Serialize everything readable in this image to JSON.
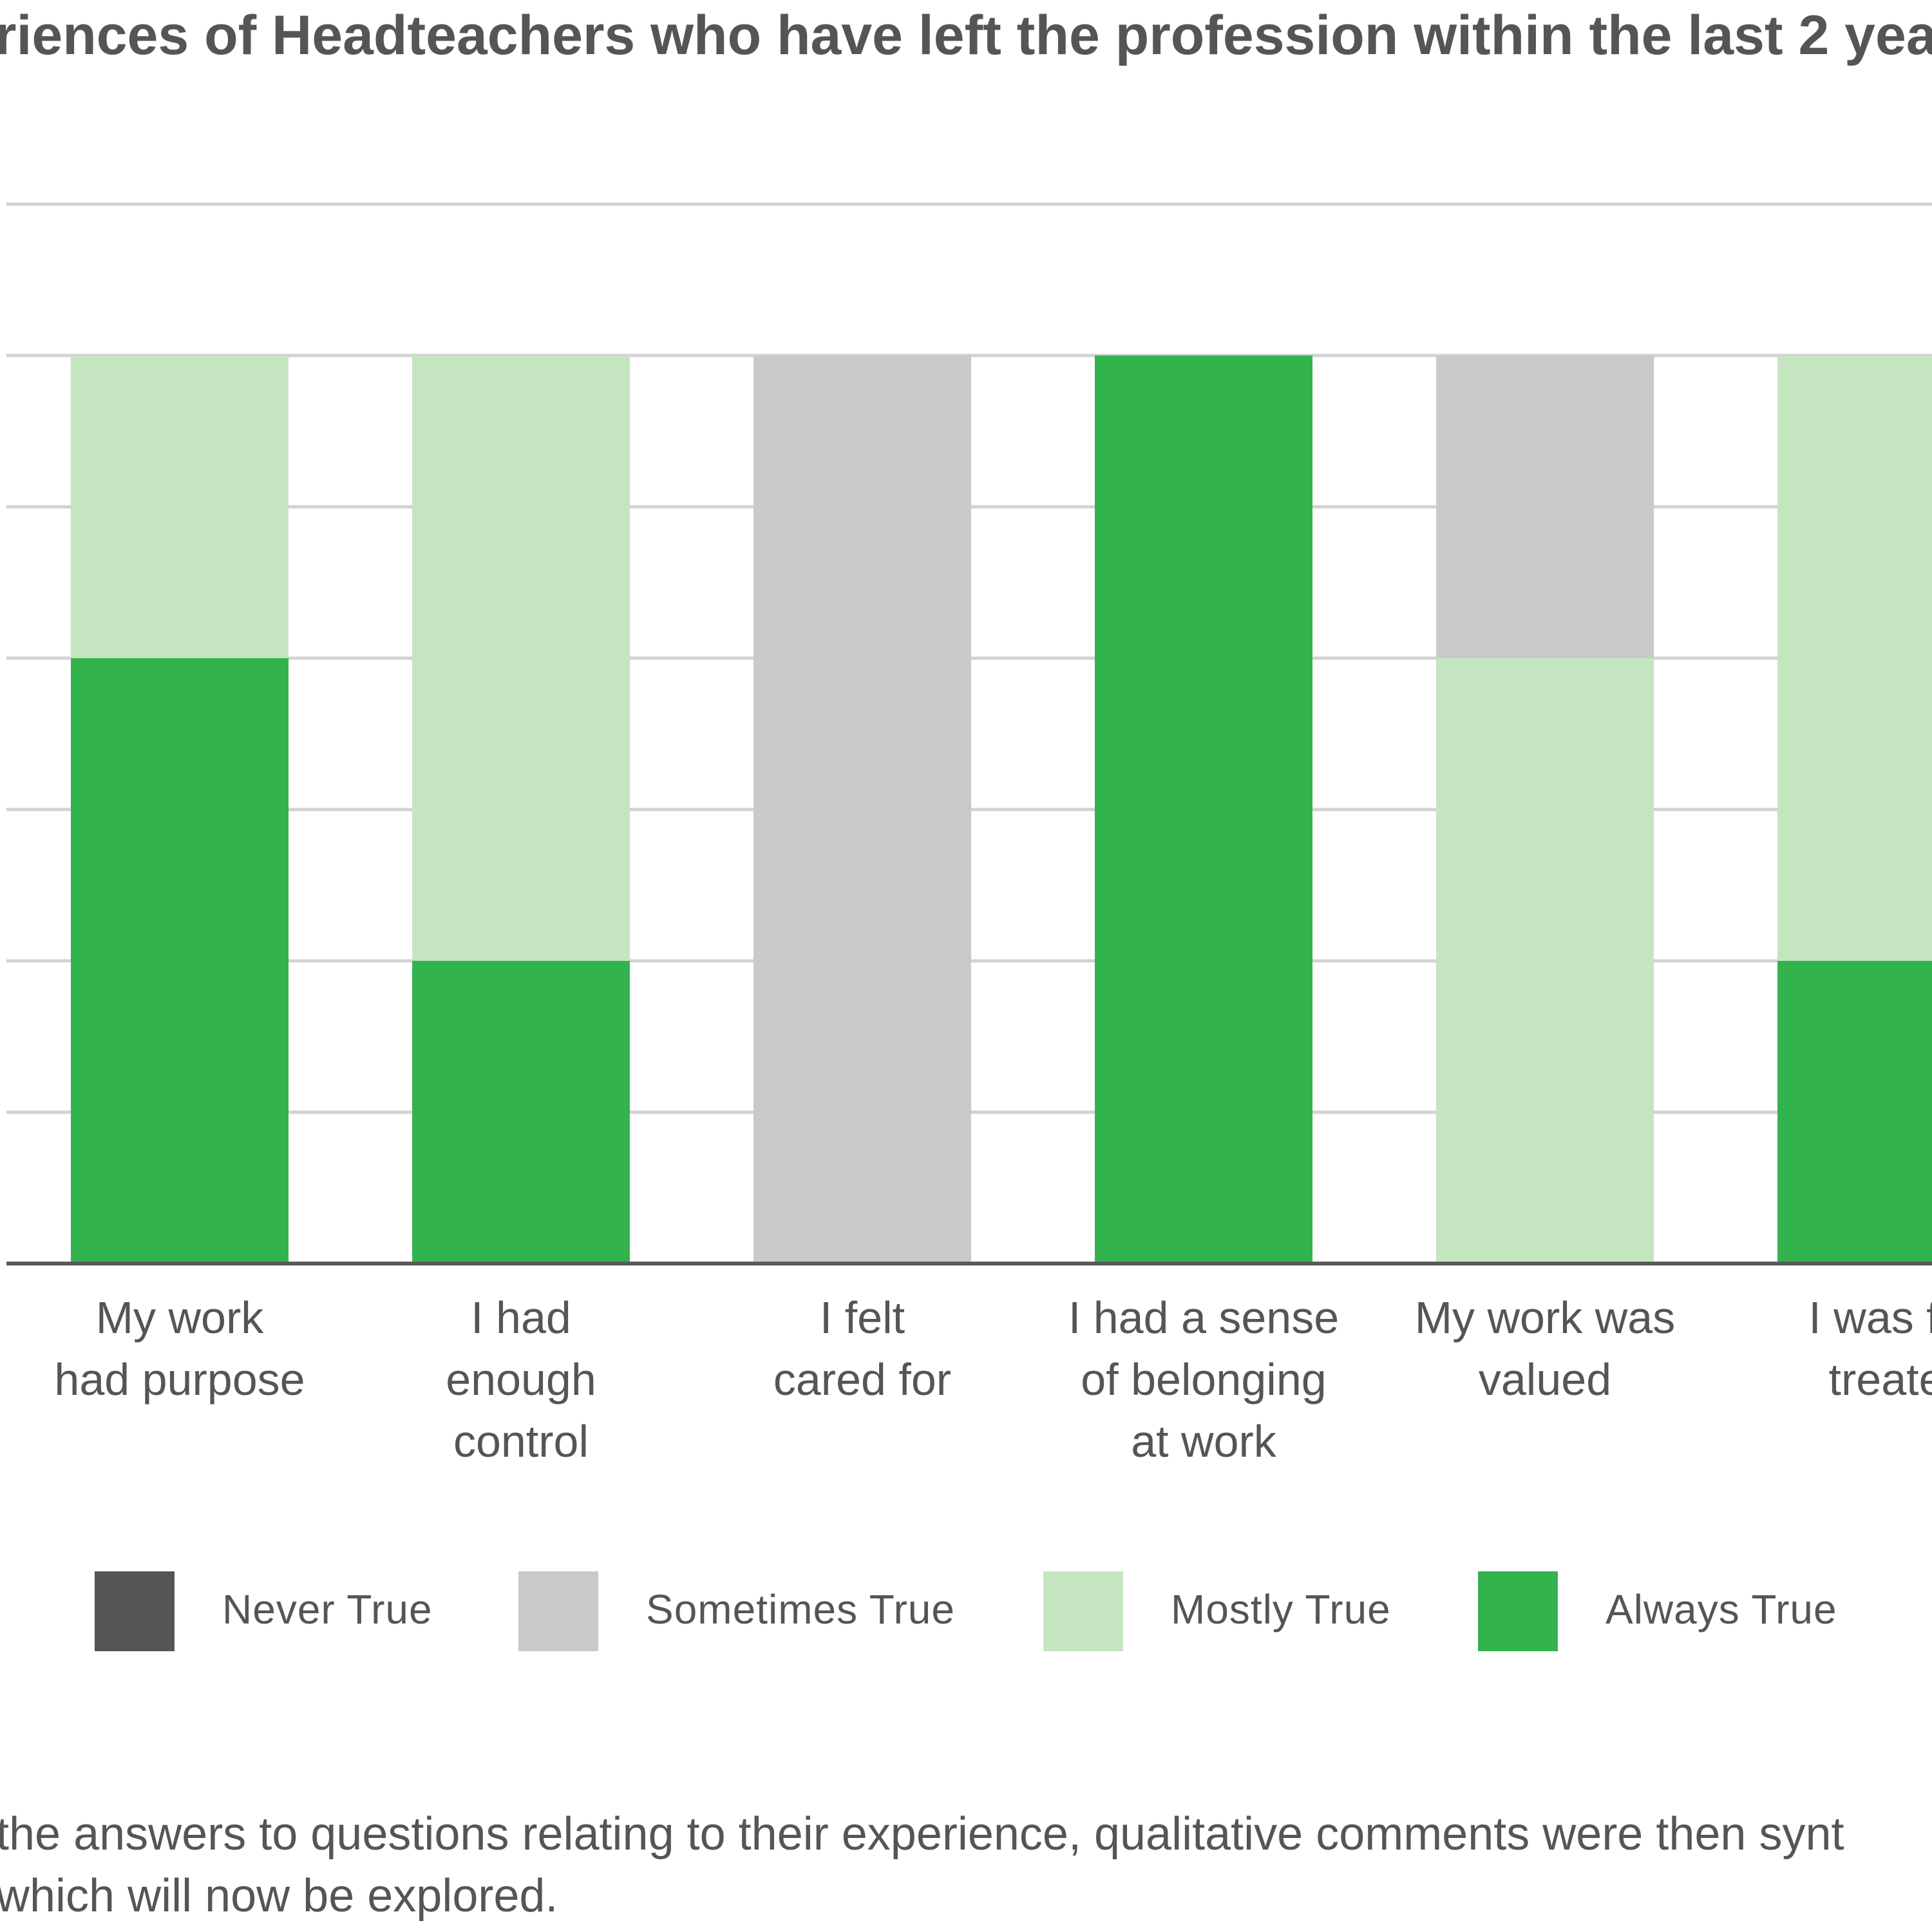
{
  "chart_data": {
    "type": "bar",
    "stacked": true,
    "title": "riences of Headteachers who have left the profession within the last 2 yea",
    "categories": [
      [
        "My work",
        "had purpose"
      ],
      [
        "I had",
        "enough",
        "control"
      ],
      [
        "I felt",
        "cared for"
      ],
      [
        "I had a sense",
        "of belonging",
        "at work"
      ],
      [
        "My work was",
        "valued"
      ],
      [
        "I was fa",
        "treate"
      ]
    ],
    "series": [
      {
        "name": "Never True",
        "color": "#555555",
        "values": [
          0,
          0,
          0,
          0,
          0,
          0
        ]
      },
      {
        "name": "Sometimes True",
        "color": "#c8c9c9",
        "values": [
          0,
          0,
          6,
          0,
          2,
          0
        ]
      },
      {
        "name": "Mostly True",
        "color": "#c5e5c0",
        "values": [
          2,
          4,
          0,
          0,
          4,
          4
        ]
      },
      {
        "name": "Always True",
        "color": "#33b34e",
        "values": [
          4,
          2,
          0,
          6,
          0,
          2
        ]
      }
    ],
    "ylim": [
      0,
      7
    ],
    "grid": true,
    "legend": "bottom"
  },
  "footer": {
    "lines": [
      "the answers to questions relating to their experience, qualitative comments were then synt",
      "which will now be explored."
    ]
  }
}
